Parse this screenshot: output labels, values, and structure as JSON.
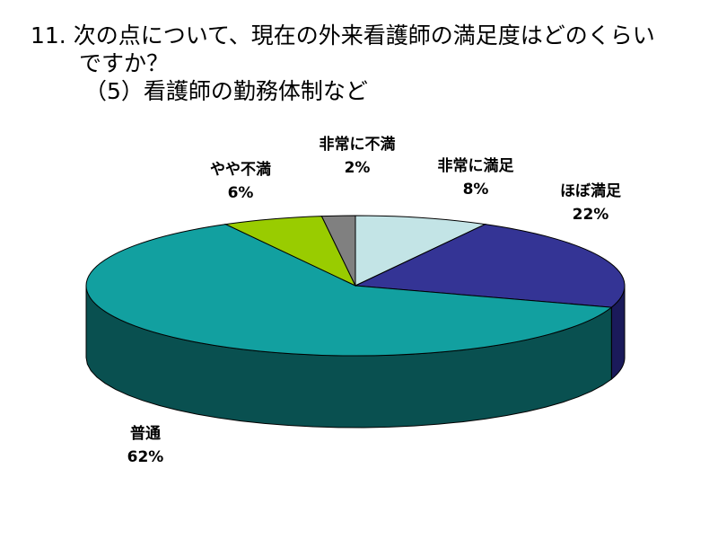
{
  "title_lines": [
    "11. 次の点について、現在の外来看護師の満足度はどのくらい",
    "ですか？",
    "（5）看護師の勤務体制など"
  ],
  "chart_data": {
    "type": "pie",
    "three_d": true,
    "labels": [
      "非常に満足",
      "ほぼ満足",
      "普通",
      "やや不満",
      "非常に不満"
    ],
    "values": [
      8,
      22,
      62,
      6,
      2
    ],
    "value_labels": [
      "8%",
      "22%",
      "62%",
      "6%",
      "2%"
    ],
    "colors": [
      "#c3e4e6",
      "#343495",
      "#12a0a0",
      "#99cc00",
      "#808080"
    ],
    "side_colors": [
      "#7a9293",
      "#1a1a5a",
      "#095050",
      "#5c7a00",
      "#4d4d4d"
    ],
    "legend": "none"
  }
}
